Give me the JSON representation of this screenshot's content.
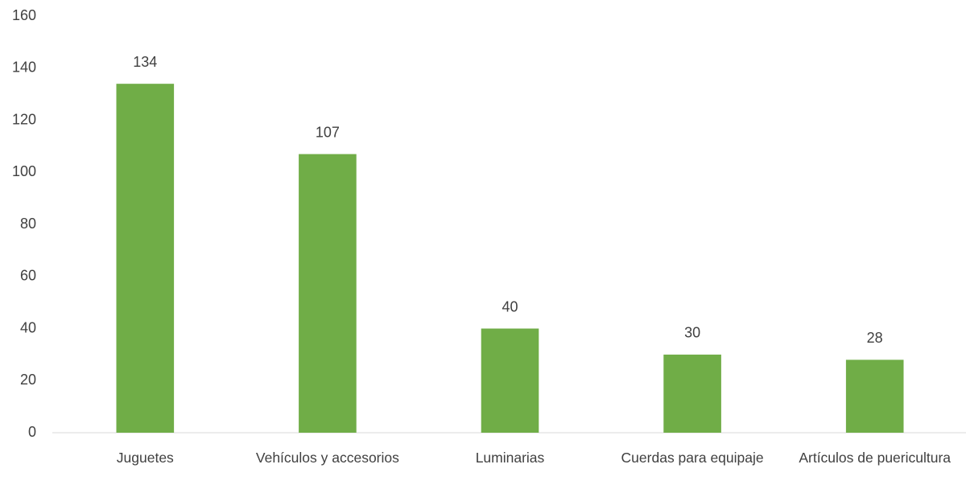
{
  "chart_data": {
    "type": "bar",
    "categories": [
      "Juguetes",
      "Vehículos y accesorios",
      "Luminarias",
      "Cuerdas para equipaje",
      "Artículos de puericultura"
    ],
    "values": [
      134,
      107,
      40,
      30,
      28
    ],
    "color": "#70ad47",
    "ylim": [
      0,
      160
    ],
    "yticks": [
      0,
      20,
      40,
      60,
      80,
      100,
      120,
      140,
      160
    ],
    "grid": false
  }
}
